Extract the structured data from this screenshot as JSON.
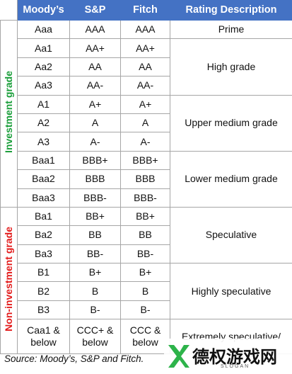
{
  "header": [
    "Moody’s",
    "S&P",
    "Fitch",
    "Rating Description"
  ],
  "groups": [
    {
      "label": "Investment grade",
      "color": "#1a9e3a",
      "bands": [
        {
          "description": "Prime",
          "ratings": [
            [
              "Aaa",
              "AAA",
              "AAA"
            ]
          ]
        },
        {
          "description": "High grade",
          "ratings": [
            [
              "Aa1",
              "AA+",
              "AA+"
            ],
            [
              "Aa2",
              "AA",
              "AA"
            ],
            [
              "Aa3",
              "AA-",
              "AA-"
            ]
          ]
        },
        {
          "description": "Upper medium grade",
          "ratings": [
            [
              "A1",
              "A+",
              "A+"
            ],
            [
              "A2",
              "A",
              "A"
            ],
            [
              "A3",
              "A-",
              "A-"
            ]
          ]
        },
        {
          "description": "Lower medium grade",
          "ratings": [
            [
              "Baa1",
              "BBB+",
              "BBB+"
            ],
            [
              "Baa2",
              "BBB",
              "BBB"
            ],
            [
              "Baa3",
              "BBB-",
              "BBB-"
            ]
          ]
        }
      ]
    },
    {
      "label": "Non-investment grade",
      "color": "#e31b1b",
      "bands": [
        {
          "description": "Speculative",
          "ratings": [
            [
              "Ba1",
              "BB+",
              "BB+"
            ],
            [
              "Ba2",
              "BB",
              "BB"
            ],
            [
              "Ba3",
              "BB-",
              "BB-"
            ]
          ]
        },
        {
          "description": "Highly speculative",
          "ratings": [
            [
              "B1",
              "B+",
              "B+"
            ],
            [
              "B2",
              "B",
              "B"
            ],
            [
              "B3",
              "B-",
              "B-"
            ]
          ]
        },
        {
          "description": "Extremely speculative/",
          "ratings": [
            [
              "Caa1 & below",
              "CCC+ & below",
              "CCC & below"
            ]
          ]
        }
      ]
    }
  ],
  "source": "Source: Moody’s, S&P and Fitch.",
  "watermark": {
    "title": "德权游戏网",
    "slogan": "SLOGAN"
  }
}
